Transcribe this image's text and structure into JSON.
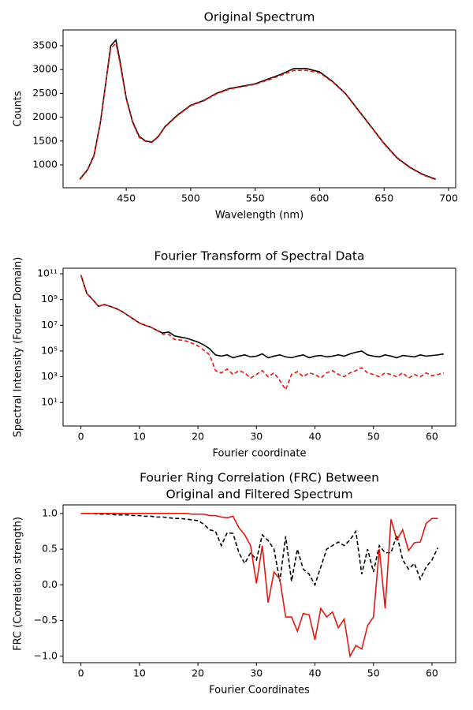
{
  "chart_data": [
    {
      "type": "line",
      "title": "Original Spectrum",
      "x_label": "Wavelength (nm)",
      "y_label": "Counts",
      "x": [
        414,
        420,
        425,
        430,
        435,
        438,
        442,
        445,
        450,
        455,
        460,
        465,
        470,
        475,
        480,
        490,
        500,
        510,
        520,
        530,
        540,
        550,
        560,
        570,
        580,
        590,
        600,
        610,
        620,
        630,
        640,
        650,
        660,
        670,
        680,
        690
      ],
      "series": [
        {
          "color": "#000000",
          "dashed": false,
          "values": [
            700,
            900,
            1200,
            1900,
            2900,
            3500,
            3620,
            3200,
            2400,
            1900,
            1600,
            1500,
            1480,
            1600,
            1800,
            2050,
            2250,
            2350,
            2500,
            2600,
            2650,
            2700,
            2800,
            2900,
            3020,
            3020,
            2950,
            2750,
            2500,
            2150,
            1800,
            1450,
            1150,
            950,
            800,
            700
          ]
        },
        {
          "color": "#e8160c",
          "dashed": true,
          "values": [
            690,
            890,
            1180,
            1880,
            2880,
            3450,
            3550,
            3150,
            2380,
            1880,
            1580,
            1490,
            1470,
            1590,
            1790,
            2040,
            2240,
            2340,
            2490,
            2590,
            2640,
            2690,
            2780,
            2880,
            2980,
            2980,
            2930,
            2740,
            2490,
            2140,
            1790,
            1440,
            1140,
            940,
            790,
            690
          ]
        }
      ],
      "xlim": [
        401,
        705.5
      ],
      "ylim": [
        520,
        3830
      ],
      "xticks": [
        450,
        500,
        550,
        600,
        650,
        700
      ],
      "yticks": [
        1000,
        1500,
        2000,
        2500,
        3000,
        3500
      ]
    },
    {
      "type": "line",
      "title": "Fourier Transform of Spectral Data",
      "x_label": "Fourier coordinate",
      "y_label": "Spectral Intensity (Fourier Domain)",
      "log_y": true,
      "x": [
        0,
        1,
        2,
        3,
        4,
        5,
        6,
        7,
        8,
        9,
        10,
        11,
        12,
        13,
        14,
        15,
        16,
        17,
        18,
        19,
        20,
        21,
        22,
        23,
        24,
        25,
        26,
        27,
        28,
        29,
        30,
        31,
        32,
        33,
        34,
        35,
        36,
        37,
        38,
        39,
        40,
        41,
        42,
        43,
        44,
        45,
        46,
        47,
        48,
        49,
        50,
        51,
        52,
        53,
        54,
        55,
        56,
        57,
        58,
        59,
        60,
        61,
        62
      ],
      "series": [
        {
          "color": "#000000",
          "dashed": false,
          "values": [
            80000000000,
            3000000000,
            1000000000,
            300000000,
            400000000,
            300000000,
            200000000,
            120000000,
            60000000,
            30000000,
            15000000,
            10000000,
            7000000,
            4000000,
            2500000,
            3000000,
            1500000,
            1200000,
            1000000,
            700000,
            500000,
            300000,
            150000,
            50000,
            40000,
            50000,
            30000,
            40000,
            50000,
            35000,
            40000,
            60000,
            30000,
            40000,
            50000,
            35000,
            30000,
            40000,
            50000,
            30000,
            40000,
            45000,
            35000,
            40000,
            50000,
            40000,
            60000,
            80000,
            100000,
            50000,
            40000,
            35000,
            50000,
            40000,
            30000,
            45000,
            40000,
            35000,
            50000,
            40000,
            45000,
            50000,
            60000
          ]
        },
        {
          "color": "#e8160c",
          "dashed": true,
          "values": [
            80000000000,
            3000000000,
            1000000000,
            300000000,
            400000000,
            300000000,
            200000000,
            120000000,
            60000000,
            30000000,
            15000000,
            10000000,
            7000000,
            4000000,
            2000000,
            2000000,
            800000,
            700000,
            600000,
            400000,
            250000,
            120000,
            50000,
            3000,
            2000,
            4000,
            1500,
            3000,
            2000,
            800,
            1500,
            3000,
            1000,
            2000,
            500,
            100,
            1500,
            2500,
            1000,
            2000,
            1500,
            800,
            2000,
            3000,
            1500,
            1000,
            2000,
            3000,
            5000,
            2000,
            1500,
            1000,
            2000,
            1500,
            1000,
            2000,
            800,
            1500,
            1000,
            2000,
            1200,
            1500,
            2000
          ]
        }
      ],
      "xlim": [
        -3.05,
        64.05
      ],
      "ylim": [
        0.15,
        270000000000
      ],
      "xticks": [
        0,
        10,
        20,
        30,
        40,
        50,
        60
      ],
      "yticks": [
        {
          "value": 10,
          "label": "10¹"
        },
        {
          "value": 1000,
          "label": "10³"
        },
        {
          "value": 100000,
          "label": "10⁵"
        },
        {
          "value": 10000000,
          "label": "10⁷"
        },
        {
          "value": 1000000000,
          "label": "10⁹"
        },
        {
          "value": 100000000000,
          "label": "10¹¹"
        }
      ]
    },
    {
      "type": "line",
      "title": [
        "Fourier Ring Correlation (FRC) Between",
        "Original and Filtered Spectrum"
      ],
      "x_label": "Fourier Coordinates",
      "y_label": "FRC (Correlation strength)",
      "x": [
        0,
        1,
        2,
        3,
        4,
        5,
        6,
        7,
        8,
        9,
        10,
        11,
        12,
        13,
        14,
        15,
        16,
        17,
        18,
        19,
        20,
        21,
        22,
        23,
        24,
        25,
        26,
        27,
        28,
        29,
        30,
        31,
        32,
        33,
        34,
        35,
        36,
        37,
        38,
        39,
        40,
        41,
        42,
        43,
        44,
        45,
        46,
        47,
        48,
        49,
        50,
        51,
        52,
        53,
        54,
        55,
        56,
        57,
        58,
        59,
        60,
        61
      ],
      "series": [
        {
          "color": "#000000",
          "dashed": true,
          "values": [
            1.0,
            1.0,
            1.0,
            0.99,
            0.99,
            0.99,
            0.98,
            0.98,
            0.98,
            0.97,
            0.97,
            0.96,
            0.96,
            0.95,
            0.95,
            0.94,
            0.93,
            0.93,
            0.92,
            0.91,
            0.9,
            0.85,
            0.77,
            0.75,
            0.55,
            0.73,
            0.72,
            0.45,
            0.3,
            0.45,
            0.35,
            0.7,
            0.62,
            0.5,
            0.05,
            0.68,
            0.05,
            0.5,
            0.22,
            0.15,
            0.0,
            0.25,
            0.5,
            0.55,
            0.6,
            0.55,
            0.63,
            0.75,
            0.15,
            0.5,
            0.18,
            0.55,
            0.45,
            0.45,
            0.7,
            0.35,
            0.22,
            0.3,
            0.08,
            0.25,
            0.35,
            0.52
          ]
        },
        {
          "color": "#e8160c",
          "dashed": false,
          "values": [
            1.0,
            1.0,
            1.0,
            1.0,
            1.0,
            1.0,
            1.0,
            1.0,
            1.0,
            1.0,
            1.0,
            1.0,
            1.0,
            1.0,
            1.0,
            1.0,
            1.0,
            1.0,
            1.0,
            0.99,
            0.99,
            0.99,
            0.97,
            0.97,
            0.95,
            0.94,
            0.96,
            0.8,
            0.7,
            0.55,
            0.02,
            0.55,
            -0.25,
            0.18,
            0.08,
            -0.45,
            -0.45,
            -0.65,
            -0.4,
            -0.42,
            -0.77,
            -0.33,
            -0.45,
            -0.38,
            -0.6,
            -0.48,
            -1.0,
            -0.85,
            -0.9,
            -0.57,
            -0.45,
            0.5,
            -0.33,
            0.92,
            0.63,
            0.77,
            0.48,
            0.59,
            0.6,
            0.86,
            0.93,
            0.93
          ]
        }
      ],
      "xlim": [
        -3.05,
        64.05
      ],
      "ylim": [
        -1.09,
        1.12
      ],
      "xticks": [
        0,
        10,
        20,
        30,
        40,
        50,
        60
      ],
      "yticks": [
        {
          "value": -1,
          "label": "−1.0"
        },
        {
          "value": -0.5,
          "label": "−0.5"
        },
        {
          "value": 0,
          "label": "0.0"
        },
        {
          "value": 0.5,
          "label": "0.5"
        },
        {
          "value": 1,
          "label": "1.0"
        }
      ]
    }
  ]
}
